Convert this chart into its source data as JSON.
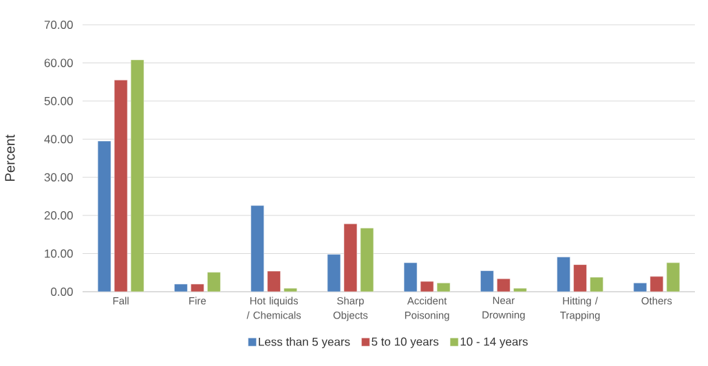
{
  "chart_data": {
    "type": "bar",
    "ylabel": "Percent",
    "categories": [
      "Fall",
      "Fire",
      "Hot liquids / Chemicals",
      "Sharp Objects",
      "Accident Poisoning",
      "Near Drowning",
      "Hitting / Trapping",
      "Others"
    ],
    "series": [
      {
        "name": "Less than 5 years",
        "color": "#4f81bd",
        "values": [
          39.5,
          2.0,
          22.6,
          9.8,
          7.6,
          5.5,
          9.1,
          2.3
        ]
      },
      {
        "name": "5 to 10 years",
        "color": "#c0504d",
        "values": [
          55.5,
          2.0,
          5.4,
          17.8,
          2.7,
          3.4,
          7.1,
          4.0
        ]
      },
      {
        "name": "10 - 14 years",
        "color": "#9bbb59",
        "values": [
          60.8,
          5.1,
          0.9,
          16.7,
          2.3,
          0.9,
          3.8,
          7.6
        ]
      }
    ],
    "ylim": [
      0,
      70
    ],
    "yticks": [
      {
        "value": 0,
        "label": "0.00"
      },
      {
        "value": 10,
        "label": "10.00"
      },
      {
        "value": 20,
        "label": "20.00"
      },
      {
        "value": 30,
        "label": "30.00"
      },
      {
        "value": 40,
        "label": "40.00"
      },
      {
        "value": 50,
        "label": "50.00"
      },
      {
        "value": 60,
        "label": "60.00"
      },
      {
        "value": 70,
        "label": "70.00"
      }
    ],
    "grid": "y",
    "legend": "bottom"
  }
}
